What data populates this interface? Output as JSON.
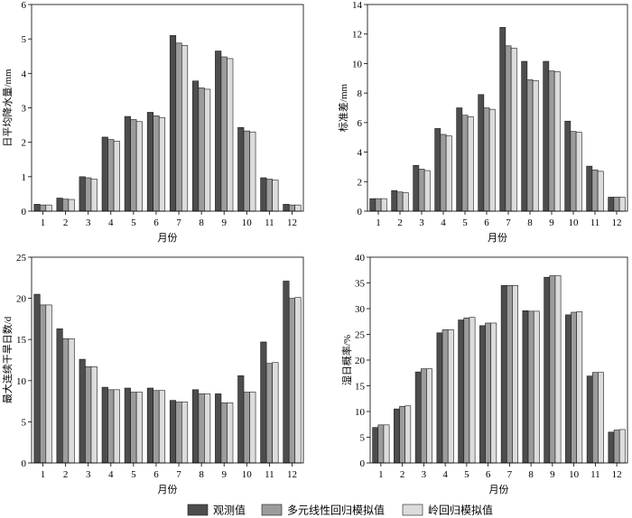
{
  "legend": [
    {
      "label": "观测值",
      "color": "#4d4d4d"
    },
    {
      "label": "多元线性回归模拟值",
      "color": "#9c9c9c"
    },
    {
      "label": "岭回归模拟值",
      "color": "#dcdcdc"
    }
  ],
  "chart_data": [
    {
      "type": "bar",
      "categories": [
        "1",
        "2",
        "3",
        "4",
        "5",
        "6",
        "7",
        "8",
        "9",
        "10",
        "11",
        "12"
      ],
      "xlabel": "月份",
      "ylabel": "日平均降水量/mm",
      "ylim": [
        0,
        6
      ],
      "yticks": [
        0,
        1,
        2,
        3,
        4,
        5,
        6
      ],
      "series": [
        {
          "legend": 0,
          "values": [
            0.2,
            0.38,
            1.0,
            2.15,
            2.75,
            2.87,
            5.1,
            3.78,
            4.65,
            2.43,
            0.97,
            0.2
          ]
        },
        {
          "legend": 1,
          "values": [
            0.18,
            0.35,
            0.97,
            2.08,
            2.66,
            2.77,
            4.88,
            3.58,
            4.48,
            2.33,
            0.93,
            0.18
          ]
        },
        {
          "legend": 2,
          "values": [
            0.18,
            0.34,
            0.93,
            2.03,
            2.6,
            2.72,
            4.81,
            3.54,
            4.43,
            2.3,
            0.9,
            0.18
          ]
        }
      ]
    },
    {
      "type": "bar",
      "categories": [
        "1",
        "2",
        "3",
        "4",
        "5",
        "6",
        "7",
        "8",
        "9",
        "10",
        "11",
        "12"
      ],
      "xlabel": "月份",
      "ylabel": "标准差/mm",
      "ylim": [
        0,
        14
      ],
      "yticks": [
        0,
        2,
        4,
        6,
        8,
        10,
        12,
        14
      ],
      "series": [
        {
          "legend": 0,
          "values": [
            0.85,
            1.4,
            3.1,
            5.6,
            7.0,
            7.9,
            12.45,
            10.15,
            10.15,
            6.1,
            3.05,
            0.95
          ]
        },
        {
          "legend": 1,
          "values": [
            0.85,
            1.3,
            2.85,
            5.2,
            6.5,
            7.0,
            11.2,
            8.9,
            9.5,
            5.4,
            2.8,
            0.95
          ]
        },
        {
          "legend": 2,
          "values": [
            0.85,
            1.25,
            2.75,
            5.1,
            6.4,
            6.9,
            11.05,
            8.85,
            9.45,
            5.35,
            2.7,
            0.95
          ]
        }
      ]
    },
    {
      "type": "bar",
      "categories": [
        "1",
        "2",
        "3",
        "4",
        "5",
        "6",
        "7",
        "8",
        "9",
        "10",
        "11",
        "12"
      ],
      "xlabel": "月份",
      "ylabel": "最大连续干旱日数/d",
      "ylim": [
        0,
        25
      ],
      "yticks": [
        0,
        5,
        10,
        15,
        20,
        25
      ],
      "series": [
        {
          "legend": 0,
          "values": [
            20.5,
            16.3,
            12.6,
            9.2,
            9.1,
            9.1,
            7.6,
            8.9,
            8.4,
            10.6,
            14.7,
            22.1
          ]
        },
        {
          "legend": 1,
          "values": [
            19.2,
            15.1,
            11.7,
            8.9,
            8.6,
            8.8,
            7.4,
            8.4,
            7.3,
            8.6,
            12.1,
            20.0
          ]
        },
        {
          "legend": 2,
          "values": [
            19.2,
            15.1,
            11.7,
            8.9,
            8.6,
            8.8,
            7.4,
            8.4,
            7.3,
            8.6,
            12.2,
            20.1
          ]
        }
      ]
    },
    {
      "type": "bar",
      "categories": [
        "1",
        "2",
        "3",
        "4",
        "5",
        "6",
        "7",
        "8",
        "9",
        "10",
        "11",
        "12"
      ],
      "xlabel": "月份",
      "ylabel": "湿日概率/%",
      "ylim": [
        0,
        40
      ],
      "yticks": [
        0,
        5,
        10,
        15,
        20,
        25,
        30,
        35,
        40
      ],
      "series": [
        {
          "legend": 0,
          "values": [
            6.9,
            10.5,
            17.7,
            25.3,
            27.8,
            26.7,
            34.5,
            29.6,
            36.1,
            28.8,
            16.9,
            6.0
          ]
        },
        {
          "legend": 1,
          "values": [
            7.4,
            11.0,
            18.3,
            25.9,
            28.2,
            27.2,
            34.5,
            29.5,
            36.4,
            29.3,
            17.6,
            6.4
          ]
        },
        {
          "legend": 2,
          "values": [
            7.4,
            11.1,
            18.3,
            25.9,
            28.3,
            27.2,
            34.5,
            29.5,
            36.4,
            29.4,
            17.6,
            6.5
          ]
        }
      ]
    }
  ]
}
